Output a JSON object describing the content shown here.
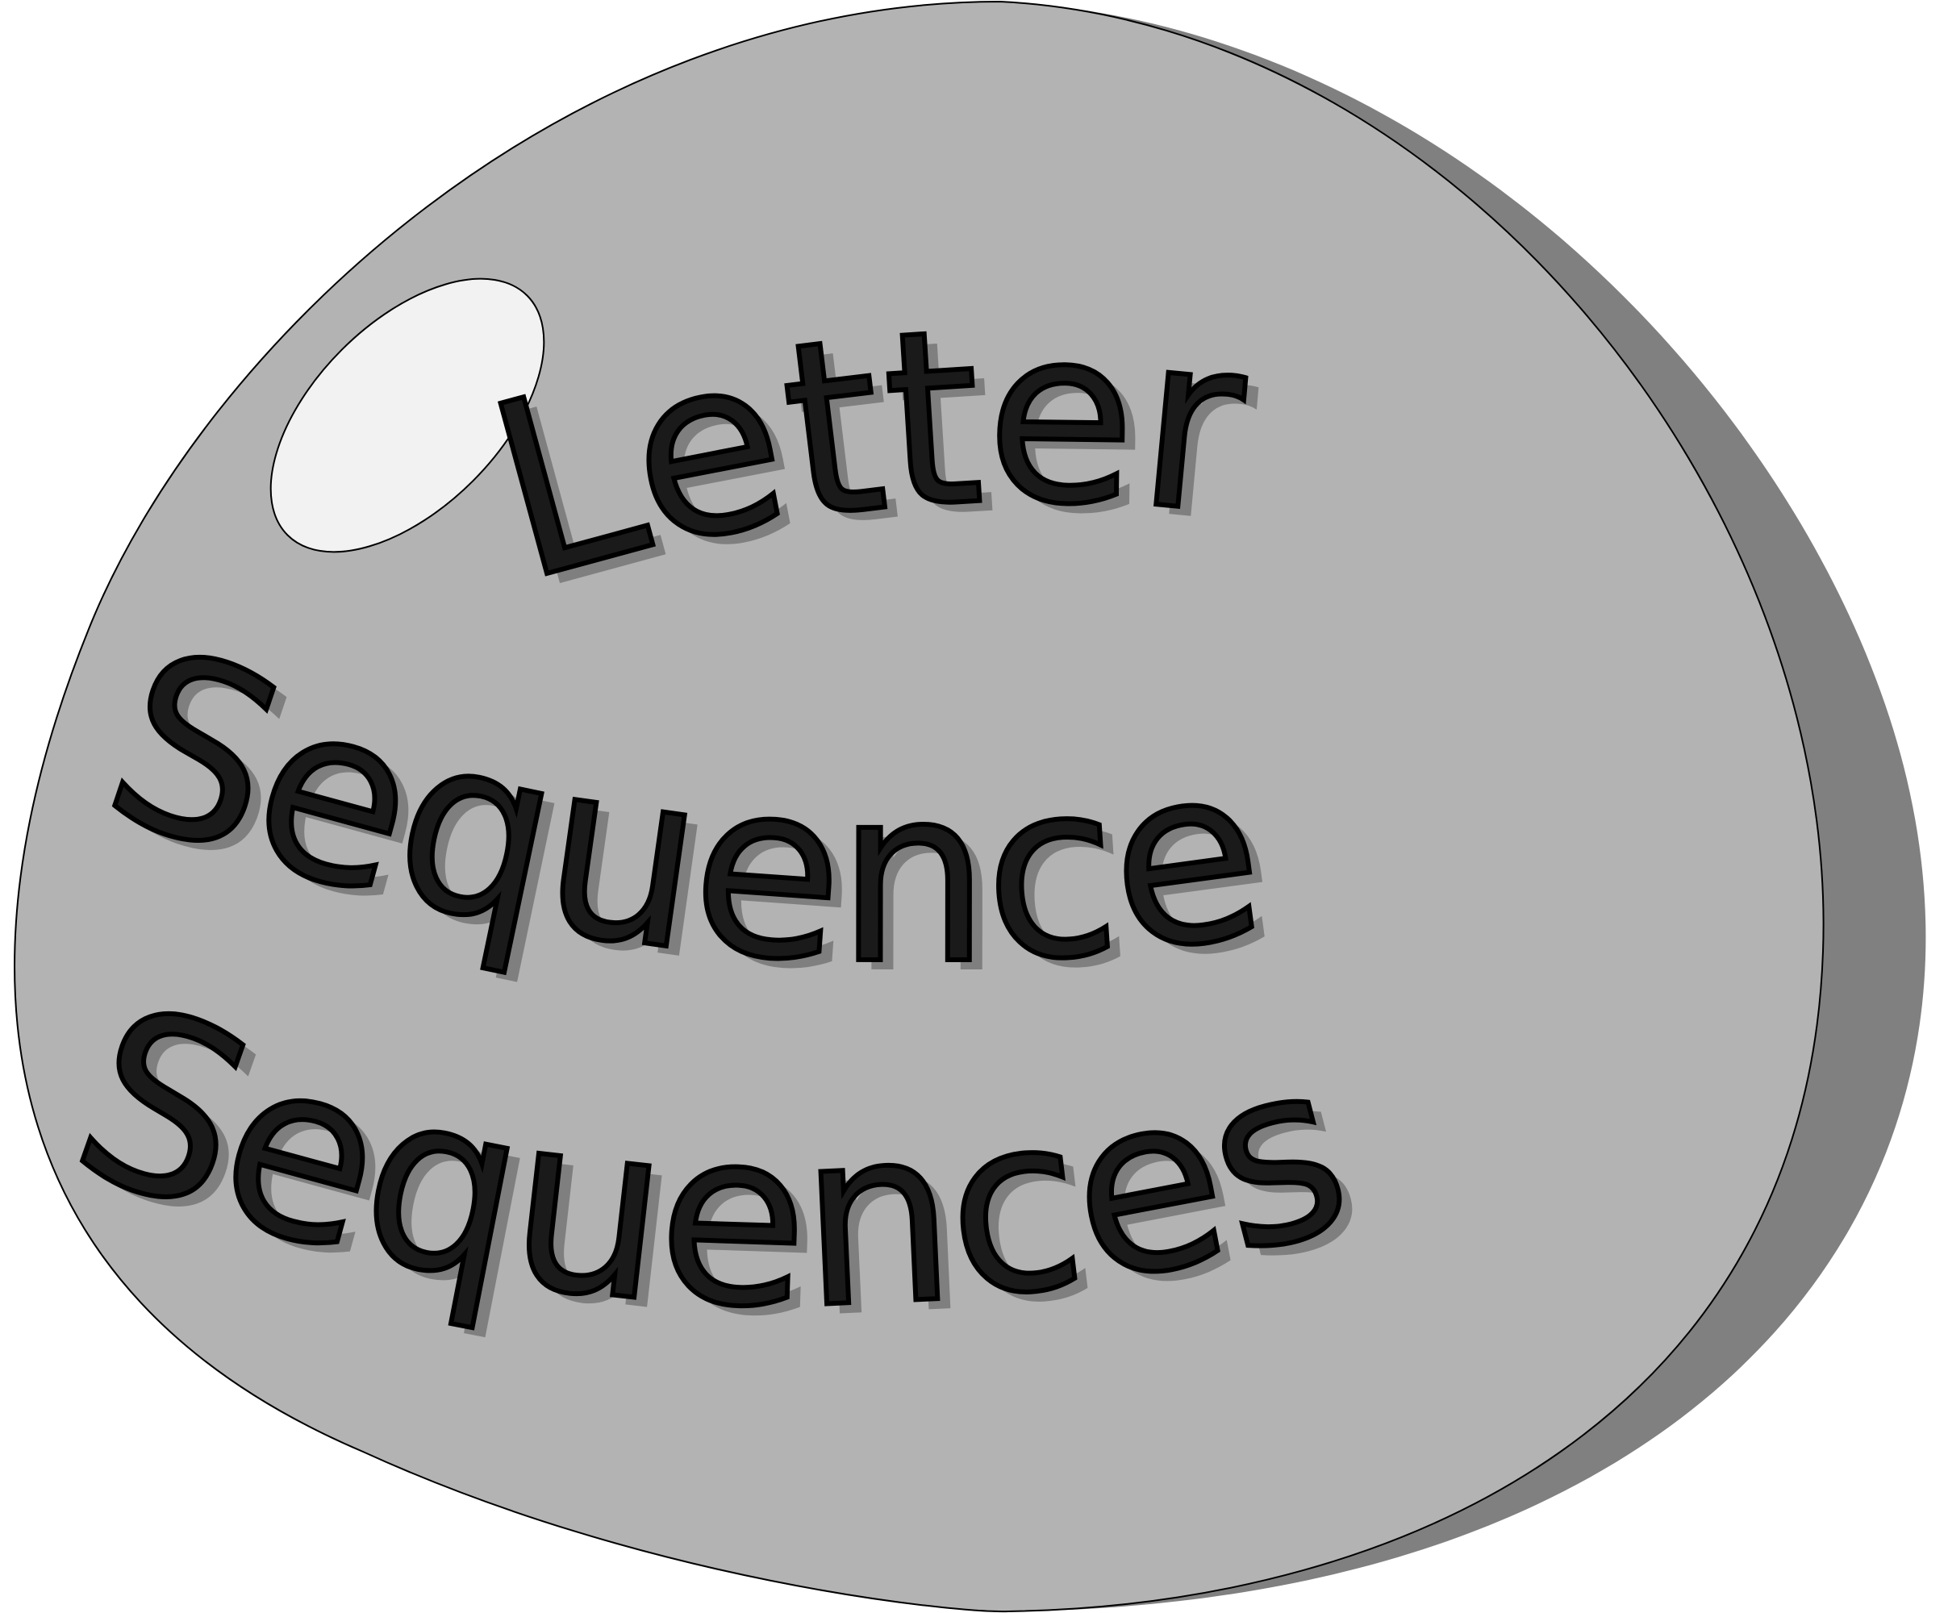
{
  "logo": {
    "line1": "Letter",
    "line2": "Sequence",
    "line3": "Sequences"
  },
  "colors": {
    "stone_fill": "#b3b3b3",
    "stone_shadow": "#808080",
    "stone_outline": "#000000",
    "highlight": "#f2f2f2",
    "text": "#1a1a1a",
    "text_shadow": "#7f7f7f",
    "background": "#ffffff"
  }
}
